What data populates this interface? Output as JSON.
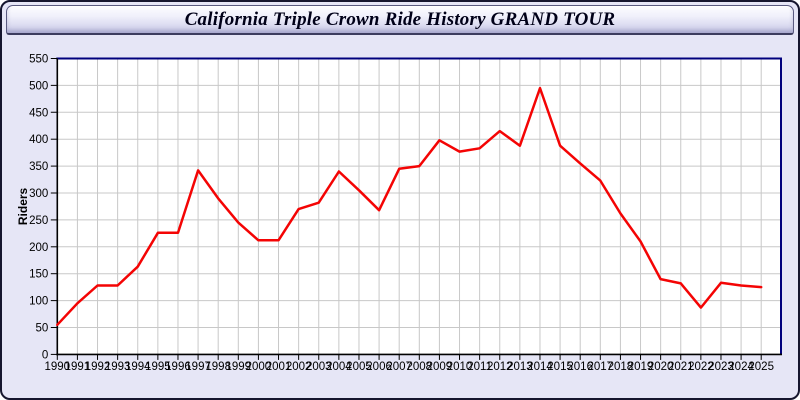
{
  "title": "California Triple Crown Ride History GRAND TOUR",
  "colors": {
    "page_bg": "#e6e6f6",
    "page_border": "#16162e",
    "plot_bg": "#ffffff",
    "grid": "#c8c8c8",
    "plot_border": "#00007d",
    "axis": "#000000",
    "tick_text": "#000000",
    "line": "#f40404"
  },
  "chart_data": {
    "type": "line",
    "title": "California Triple Crown Ride History GRAND TOUR",
    "xlabel": "",
    "ylabel": "Riders",
    "ylim": [
      0,
      550
    ],
    "ytick_interval": 50,
    "y_tick_labels": [
      "0",
      "50",
      "100",
      "150",
      "200",
      "250",
      "300",
      "350",
      "400",
      "450",
      "500",
      "550"
    ],
    "grid": true,
    "legend": false,
    "x": [
      1990,
      1991,
      1992,
      1993,
      1994,
      1995,
      1996,
      1997,
      1998,
      1999,
      2000,
      2001,
      2002,
      2003,
      2004,
      2005,
      2006,
      2007,
      2008,
      2009,
      2010,
      2011,
      2012,
      2013,
      2014,
      2015,
      2016,
      2017,
      2018,
      2019,
      2020,
      2021,
      2022,
      2023,
      2024,
      2025
    ],
    "series": [
      {
        "name": "Riders",
        "color": "#f40404",
        "values": [
          55,
          95,
          128,
          128,
          163,
          226,
          226,
          342,
          290,
          245,
          212,
          212,
          270,
          282,
          340,
          305,
          268,
          345,
          350,
          398,
          377,
          383,
          415,
          388,
          495,
          388,
          355,
          323,
          262,
          210,
          140,
          132,
          87,
          133,
          128,
          125
        ]
      }
    ]
  }
}
